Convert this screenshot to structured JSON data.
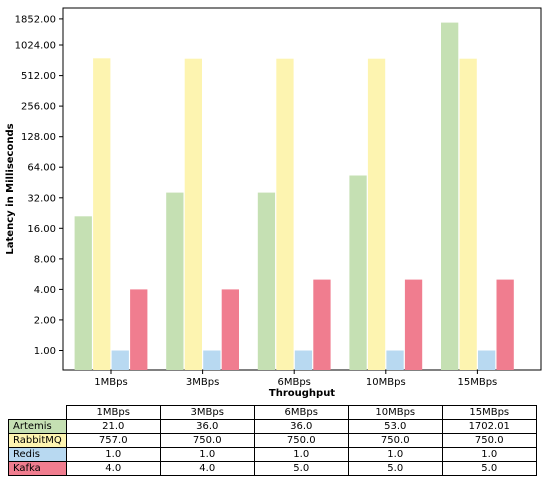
{
  "chart_data": {
    "type": "bar",
    "title": "",
    "xlabel": "Throughput",
    "ylabel": "Latency in Milliseconds",
    "yscale": "log2",
    "ylim": [
      0.7,
      2000
    ],
    "yticks": [
      "1.00",
      "2.00",
      "4.00",
      "8.00",
      "16.00",
      "32.00",
      "64.00",
      "128.00",
      "256.00",
      "512.00",
      "1024.00",
      "1852.00"
    ],
    "ytick_values": [
      1,
      2,
      4,
      8,
      16,
      32,
      64,
      128,
      256,
      512,
      1024,
      1852
    ],
    "categories": [
      "1MBps",
      "3MBps",
      "6MBps",
      "10MBps",
      "15MBps"
    ],
    "series": [
      {
        "name": "Artemis",
        "color": "#c5e0b3",
        "values": [
          21.0,
          36.0,
          36.0,
          53.0,
          1702.01
        ],
        "table_text": [
          "21.0",
          "36.0",
          "36.0",
          "53.0",
          "1702.01"
        ]
      },
      {
        "name": "RabbitMQ",
        "color": "#fdf4b0",
        "values": [
          757.0,
          750.0,
          750.0,
          750.0,
          750.0
        ],
        "table_text": [
          "757.0",
          "750.0",
          "750.0",
          "750.0",
          "750.0"
        ]
      },
      {
        "name": "Redis",
        "color": "#b8d9f1",
        "values": [
          1.0,
          1.0,
          1.0,
          1.0,
          1.0
        ],
        "table_text": [
          "1.0",
          "1.0",
          "1.0",
          "1.0",
          "1.0"
        ]
      },
      {
        "name": "Kafka",
        "color": "#f07d8f",
        "values": [
          4.0,
          4.0,
          5.0,
          5.0,
          5.0
        ],
        "table_text": [
          "4.0",
          "4.0",
          "5.0",
          "5.0",
          "5.0"
        ]
      }
    ],
    "grid": false,
    "legend": "table-below"
  }
}
